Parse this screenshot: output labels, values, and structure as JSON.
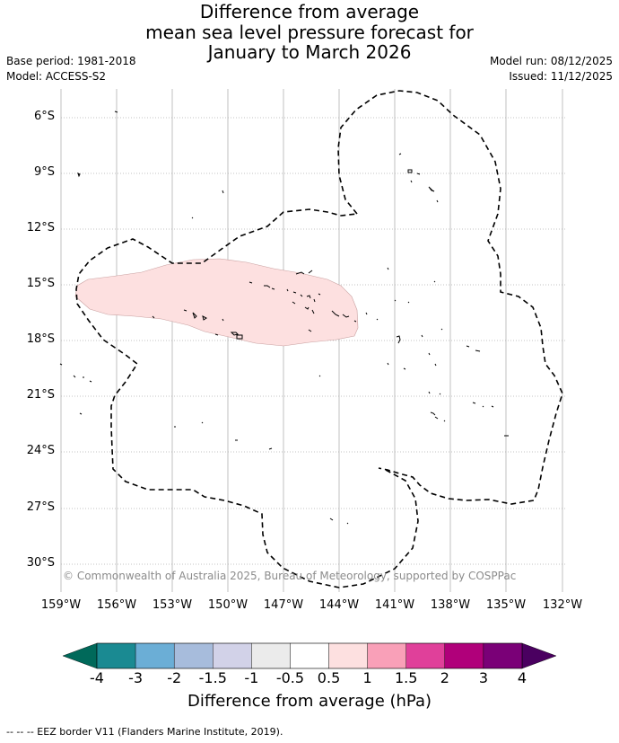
{
  "title": {
    "line1": "Difference from average",
    "line2": "mean sea level pressure forecast for",
    "line3": "January to March 2026"
  },
  "meta": {
    "base_period": "Base period: 1981-2018",
    "model": "Model: ACCESS-S2",
    "model_run": "Model run: 08/12/2025",
    "issued": "Issued: 11/12/2025"
  },
  "map": {
    "lat_labels": [
      "6°S",
      "9°S",
      "12°S",
      "15°S",
      "18°S",
      "21°S",
      "24°S",
      "27°S",
      "30°S"
    ],
    "lon_labels": [
      "159°W",
      "156°W",
      "153°W",
      "150°W",
      "147°W",
      "144°W",
      "141°W",
      "138°W",
      "135°W",
      "132°W"
    ],
    "copyright": "© Commonwealth of Australia 2025, Bureau of Meteorology, supported by COSPPac",
    "anomaly_region": {
      "category": "0.5 to 1",
      "color": "#fde0e0"
    },
    "eez_border_color": "#000000"
  },
  "colorbar": {
    "ticks": [
      "-4",
      "-3",
      "-2",
      "-1.5",
      "-1",
      "-0.5",
      "0.5",
      "1",
      "1.5",
      "2",
      "3",
      "4"
    ],
    "colors": [
      "#1a8a92",
      "#6baed6",
      "#a7bcdc",
      "#d2d2e8",
      "#ebebeb",
      "#ffffff",
      "#fde0e0",
      "#f9a0b8",
      "#e0409a",
      "#b0007a",
      "#7a0077"
    ],
    "under_color": "#00695a",
    "over_color": "#4a0060",
    "label": "Difference from average (hPa)"
  },
  "legend": {
    "text": "-- -- -- EEZ border V11 (Flanders Marine Institute, 2019)."
  }
}
